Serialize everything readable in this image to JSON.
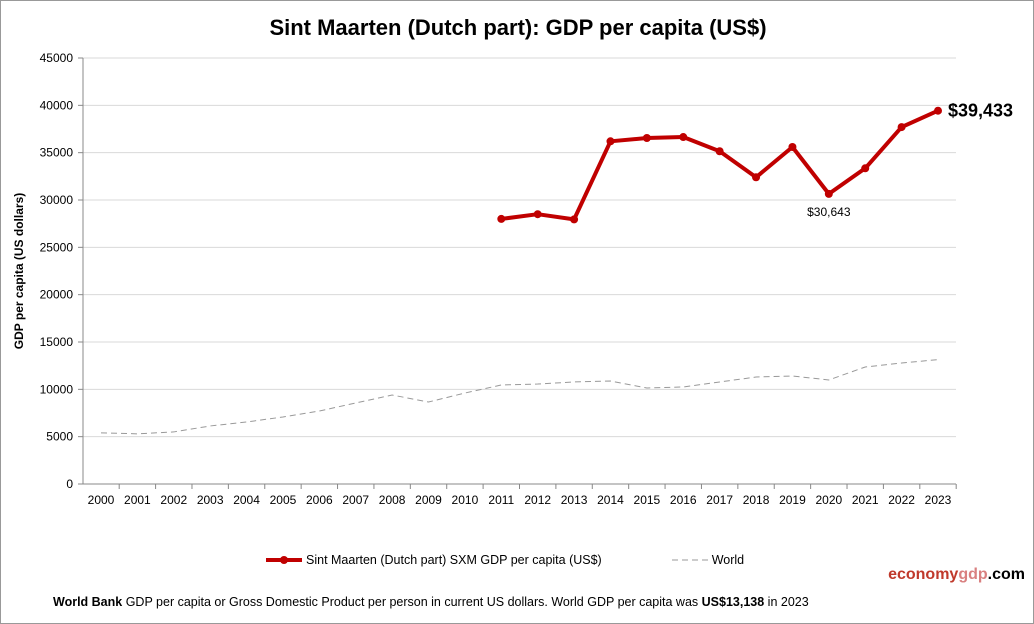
{
  "chart_data": {
    "type": "line",
    "title": "Sint Maarten (Dutch part): GDP per capita (US$)",
    "ylabel": "GDP per capita (US dollars)",
    "xlabel": "",
    "ylim": [
      0,
      45000
    ],
    "yticks": [
      0,
      5000,
      10000,
      15000,
      20000,
      25000,
      30000,
      35000,
      40000,
      45000
    ],
    "x": [
      2000,
      2001,
      2002,
      2003,
      2004,
      2005,
      2006,
      2007,
      2008,
      2009,
      2010,
      2011,
      2012,
      2013,
      2014,
      2015,
      2016,
      2017,
      2018,
      2019,
      2020,
      2021,
      2022,
      2023
    ],
    "grid": true,
    "legend_position": "bottom",
    "series": [
      {
        "name": "Sint Maarten (Dutch part) SXM GDP per capita (US$)",
        "color": "#c00000",
        "style": "solid-markers",
        "values": [
          null,
          null,
          null,
          null,
          null,
          null,
          null,
          null,
          null,
          null,
          null,
          28000,
          28500,
          27950,
          36200,
          36550,
          36650,
          35150,
          32400,
          35600,
          30643,
          33350,
          37700,
          39433
        ]
      },
      {
        "name": "World",
        "color": "#999999",
        "style": "dashed",
        "values": [
          5400,
          5300,
          5500,
          6130,
          6550,
          7080,
          7710,
          8560,
          9400,
          8660,
          9610,
          10460,
          10560,
          10780,
          10880,
          10140,
          10250,
          10780,
          11300,
          11410,
          10990,
          12360,
          12780,
          13138
        ]
      }
    ],
    "annotations": [
      {
        "year": 2023,
        "text": "$39,433"
      },
      {
        "year": 2020,
        "text": "$30,643"
      }
    ]
  },
  "watermark": {
    "part1": "economy",
    "part2": "gdp",
    "part3": ".com"
  },
  "footer": {
    "source": "World Bank",
    "text1": " GDP per capita or Gross Domestic Product per person  in current US dollars.   World GDP per capita was ",
    "value": "US$13,138",
    "text2": "  in 2023"
  }
}
